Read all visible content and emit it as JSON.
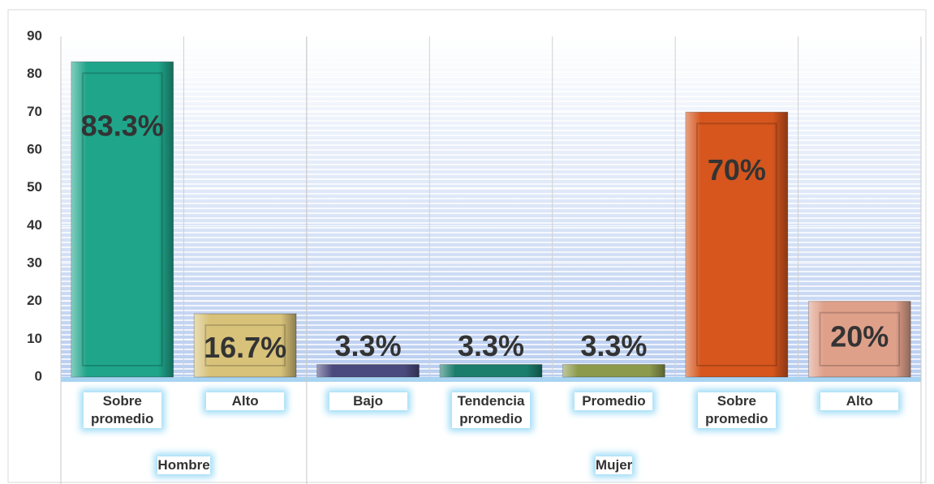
{
  "chart_data": {
    "type": "bar",
    "groups": [
      {
        "name": "Hombre",
        "categories": [
          "Sobre promedio",
          "Alto"
        ]
      },
      {
        "name": "Mujer",
        "categories": [
          "Bajo",
          "Tendencia promedio",
          "Promedio",
          "Sobre promedio",
          "Alto"
        ]
      }
    ],
    "values": [
      83.3,
      16.7,
      3.3,
      3.3,
      3.3,
      70,
      20
    ],
    "value_labels": [
      "83.3%",
      "16.7%",
      "3.3%",
      "3.3%",
      "3.3%",
      "70%",
      "20%"
    ],
    "colors": [
      "#1fa58a",
      "#d8c27a",
      "#4b4a7e",
      "#1b7d6c",
      "#8c9a4c",
      "#d6561e",
      "#dfa08a"
    ],
    "ylim": [
      0,
      90
    ],
    "yticks": [
      0,
      10,
      20,
      30,
      40,
      50,
      60,
      70,
      80,
      90
    ],
    "grid": true
  }
}
